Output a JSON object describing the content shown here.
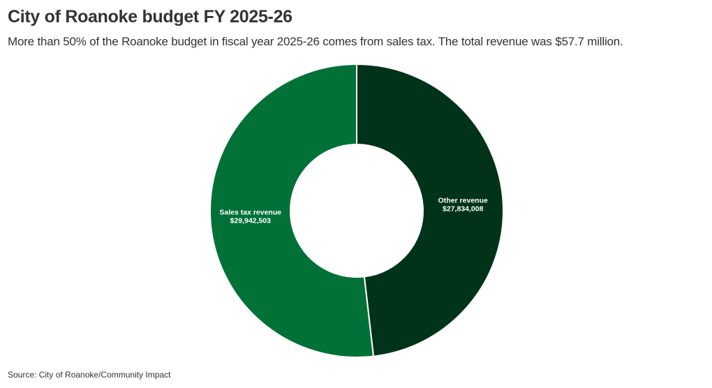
{
  "header": {
    "title": "City of Roanoke budget FY 2025-26",
    "subtitle": "More than 50% of the Roanoke budget in fiscal year 2025-26 comes from sales tax. The total revenue was $57.7 million."
  },
  "footer": {
    "source": "Source: City of Roanoke/Community Impact"
  },
  "chart_data": {
    "type": "pie",
    "style": "donut",
    "slices": [
      {
        "label": "Other revenue",
        "value": 27834008,
        "value_label": "$27,834,008",
        "color": "#003319"
      },
      {
        "label": "Sales tax revenue",
        "value": 29942503,
        "value_label": "$29,942,503",
        "color": "#017138"
      }
    ]
  }
}
